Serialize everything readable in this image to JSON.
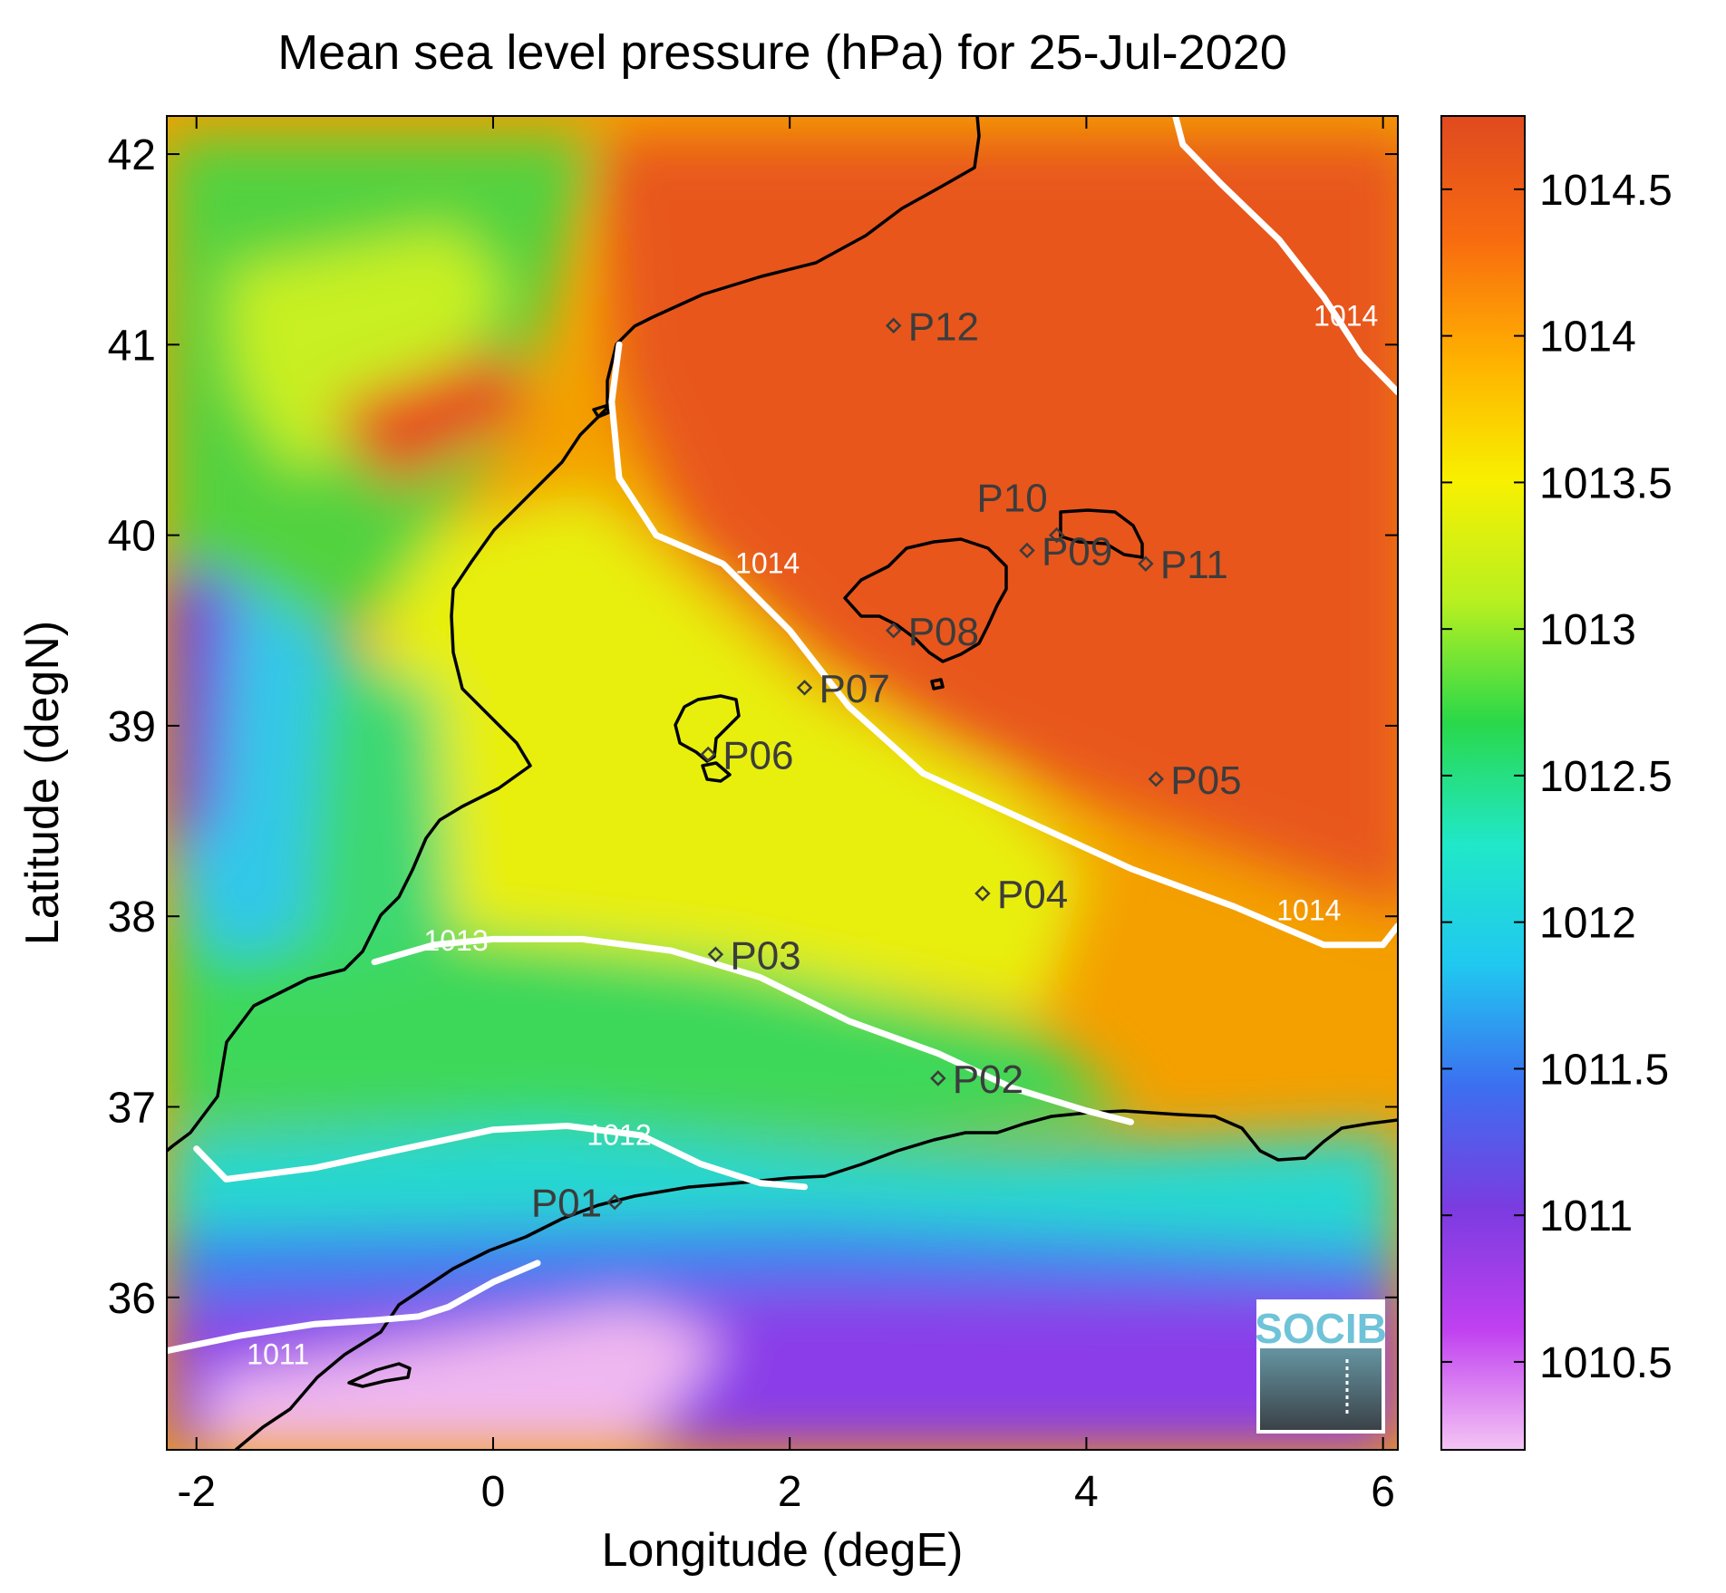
{
  "chart_data": {
    "type": "heatmap",
    "title": "Mean sea level pressure (hPa) for 25-Jul-2020",
    "xlabel": "Longitude (degE)",
    "ylabel": "Latitude (degN)",
    "xlim": [
      -2.2,
      6.1
    ],
    "ylim": [
      35.2,
      42.2
    ],
    "x_ticks": [
      -2,
      0,
      2,
      4,
      6
    ],
    "x_tick_labels": [
      "-2",
      "0",
      "2",
      "4",
      "6"
    ],
    "y_ticks": [
      36,
      37,
      38,
      39,
      40,
      41,
      42
    ],
    "y_tick_labels": [
      "36",
      "37",
      "38",
      "39",
      "40",
      "41",
      "42"
    ],
    "colorbar": {
      "range": [
        1010.2,
        1014.75
      ],
      "ticks": [
        1010.5,
        1011,
        1011.5,
        1012,
        1012.5,
        1013,
        1013.5,
        1014,
        1014.5
      ],
      "tick_labels": [
        "1010.5",
        "1011",
        "1011.5",
        "1012",
        "1012.5",
        "1013",
        "1013.5",
        "1014",
        "1014.5"
      ],
      "colormap": [
        "#f4c4f4",
        "#c040f0",
        "#7a3ce0",
        "#3c6ff0",
        "#20c8f0",
        "#20e8c8",
        "#2ad84a",
        "#b8f020",
        "#f8f000",
        "#ffb000",
        "#f86a10",
        "#e04a20"
      ]
    },
    "contours": [
      {
        "label": "1011",
        "label_positions": [
          [
            -1.45,
            35.65
          ]
        ],
        "points": [
          [
            -2.2,
            35.72
          ],
          [
            -1.7,
            35.8
          ],
          [
            -1.2,
            35.86
          ],
          [
            -0.8,
            35.88
          ],
          [
            -0.5,
            35.9
          ],
          [
            -0.3,
            35.95
          ],
          [
            0.0,
            36.08
          ],
          [
            0.3,
            36.18
          ]
        ]
      },
      {
        "label": "1012",
        "label_positions": [
          [
            0.85,
            36.8
          ]
        ],
        "points": [
          [
            -2.0,
            36.78
          ],
          [
            -1.8,
            36.62
          ],
          [
            -1.2,
            36.68
          ],
          [
            -0.6,
            36.78
          ],
          [
            0.0,
            36.88
          ],
          [
            0.5,
            36.9
          ],
          [
            1.0,
            36.85
          ],
          [
            1.4,
            36.7
          ],
          [
            1.8,
            36.6
          ],
          [
            2.1,
            36.58
          ]
        ]
      },
      {
        "label": "1013",
        "label_positions": [
          [
            -0.25,
            37.82
          ]
        ],
        "points": [
          [
            -0.8,
            37.76
          ],
          [
            -0.4,
            37.85
          ],
          [
            0.0,
            37.88
          ],
          [
            0.6,
            37.88
          ],
          [
            1.2,
            37.82
          ],
          [
            1.8,
            37.68
          ],
          [
            2.4,
            37.45
          ],
          [
            3.0,
            37.28
          ],
          [
            3.5,
            37.1
          ],
          [
            4.0,
            36.98
          ],
          [
            4.3,
            36.92
          ]
        ]
      },
      {
        "label": "1014",
        "label_positions": [
          [
            1.85,
            39.8
          ],
          [
            5.75,
            41.1
          ],
          [
            5.5,
            37.98
          ]
        ],
        "points": [
          [
            0.85,
            41.0
          ],
          [
            0.8,
            40.7
          ],
          [
            0.85,
            40.3
          ],
          [
            1.1,
            40.0
          ],
          [
            1.55,
            39.85
          ],
          [
            2.0,
            39.5
          ],
          [
            2.4,
            39.1
          ],
          [
            2.9,
            38.75
          ],
          [
            3.6,
            38.5
          ],
          [
            4.3,
            38.25
          ],
          [
            5.0,
            38.05
          ],
          [
            5.6,
            37.85
          ],
          [
            6.0,
            37.85
          ],
          [
            6.1,
            37.95
          ]
        ]
      },
      {
        "label": "1014",
        "label_positions": [],
        "points": [
          [
            4.6,
            42.2
          ],
          [
            4.65,
            42.05
          ],
          [
            4.9,
            41.85
          ],
          [
            5.3,
            41.55
          ],
          [
            5.6,
            41.25
          ],
          [
            5.85,
            40.95
          ],
          [
            6.1,
            40.75
          ]
        ]
      }
    ],
    "stations": [
      {
        "name": "P01",
        "lon": 0.82,
        "lat": 36.5
      },
      {
        "name": "P02",
        "lon": 3.0,
        "lat": 37.15
      },
      {
        "name": "P03",
        "lon": 1.5,
        "lat": 37.8
      },
      {
        "name": "P04",
        "lon": 3.3,
        "lat": 38.12
      },
      {
        "name": "P05",
        "lon": 4.47,
        "lat": 38.72
      },
      {
        "name": "P06",
        "lon": 1.45,
        "lat": 38.85
      },
      {
        "name": "P07",
        "lon": 2.1,
        "lat": 39.2
      },
      {
        "name": "P08",
        "lon": 2.7,
        "lat": 39.5
      },
      {
        "name": "P09",
        "lon": 3.6,
        "lat": 39.92
      },
      {
        "name": "P10",
        "lon": 3.8,
        "lat": 40.0
      },
      {
        "name": "P11",
        "lon": 4.4,
        "lat": 39.85
      },
      {
        "name": "P12",
        "lon": 2.7,
        "lat": 41.1
      }
    ],
    "grid": false
  },
  "logo": {
    "text": "SOCIB"
  }
}
